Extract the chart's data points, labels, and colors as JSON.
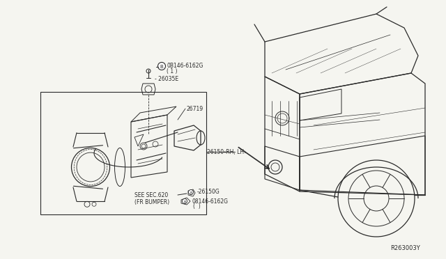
{
  "bg_color": "#f5f5f0",
  "line_color": "#2a2a2a",
  "text_color": "#2a2a2a",
  "ref_code": "R263003Y",
  "fig_width": 6.4,
  "fig_height": 3.72,
  "dpi": 100,
  "labels": {
    "b_symbol_top": "B",
    "part_top": "0B146-6162G",
    "part_top_qty": "( 1 )",
    "26035E": "26035E",
    "26719": "26719",
    "26150_rhlh": "26150 ‹RH, LH›",
    "see_sec": "SEE SEC.620",
    "fr_bumper": "(FR BUMPER)",
    "26150G": "®-26150G",
    "08146_bot": "®08146-6162G",
    "bot_qty": "( )"
  }
}
